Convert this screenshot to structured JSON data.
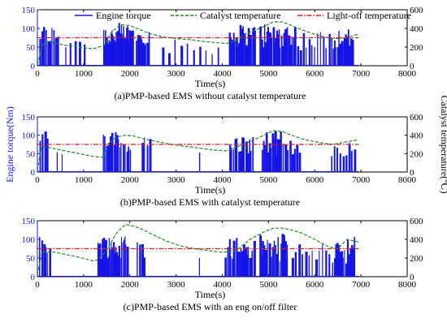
{
  "chart_data": [
    {
      "type": "line",
      "caption": "(a)PMP-based EMS without catalyst temperature",
      "xlabel": "Time(s)",
      "ylabel": "",
      "ylabel_right": "",
      "xlim": [
        0,
        8000
      ],
      "ylim": [
        0,
        150
      ],
      "ylim_right": [
        0,
        600
      ],
      "xticks": [
        "0",
        "1000",
        "2000",
        "3000",
        "4000",
        "5000",
        "6000",
        "7000",
        "8000"
      ],
      "yticks": [
        "0",
        "50",
        "100",
        "150"
      ],
      "yticks_right": [
        "0",
        "200",
        "400",
        "600"
      ],
      "grid": false,
      "legend": {
        "placement": "top",
        "entries": [
          "Engine torque",
          "Catalyst temperature",
          "Light-off temperature"
        ]
      },
      "series": [
        {
          "name": "Engine torque",
          "axis": "left",
          "style": "bars",
          "bursts": [
            {
              "start": 40,
              "end": 430,
              "count": 10,
              "min": 55,
              "max": 110
            },
            {
              "start": 600,
              "end": 1000,
              "count": 5,
              "min": 40,
              "max": 95
            },
            {
              "start": 1420,
              "end": 2060,
              "count": 32,
              "min": 50,
              "max": 115
            },
            {
              "start": 2130,
              "end": 2400,
              "count": 9,
              "min": 55,
              "max": 105
            },
            {
              "start": 2700,
              "end": 3900,
              "count": 10,
              "min": 30,
              "max": 70
            },
            {
              "start": 4140,
              "end": 4700,
              "count": 20,
              "min": 50,
              "max": 112
            },
            {
              "start": 4800,
              "end": 5550,
              "count": 30,
              "min": 45,
              "max": 118
            },
            {
              "start": 5620,
              "end": 6300,
              "count": 12,
              "min": 40,
              "max": 95
            },
            {
              "start": 6360,
              "end": 6800,
              "count": 16,
              "min": 45,
              "max": 105
            }
          ]
        },
        {
          "name": "Catalyst temperature",
          "axis": "right",
          "style": "dashed",
          "x": [
            0,
            100,
            200,
            400,
            600,
            900,
            1200,
            1450,
            1600,
            1800,
            2000,
            2200,
            2400,
            2700,
            3000,
            3300,
            3600,
            3900,
            4100,
            4300,
            4500,
            4700,
            4900,
            5100,
            5300,
            5500,
            5800,
            6100,
            6400,
            6700,
            6950
          ],
          "y": [
            10,
            210,
            260,
            240,
            220,
            200,
            180,
            220,
            360,
            440,
            430,
            390,
            350,
            310,
            290,
            280,
            260,
            245,
            240,
            270,
            340,
            380,
            420,
            470,
            470,
            430,
            370,
            320,
            290,
            300,
            340
          ]
        },
        {
          "name": "Light-off temperature",
          "axis": "right",
          "style": "dashdot",
          "x": [
            0,
            6950
          ],
          "y": [
            300,
            300
          ]
        }
      ]
    },
    {
      "type": "line",
      "caption": "(b)PMP-based EMS with catalyst temperature",
      "xlabel": "Time(s)",
      "ylabel": "Engine torque(Nm)",
      "ylabel_right": "Catalyst temperature(℃)",
      "xlim": [
        0,
        8000
      ],
      "ylim": [
        0,
        150
      ],
      "ylim_right": [
        0,
        600
      ],
      "xticks": [
        "0",
        "1000",
        "2000",
        "3000",
        "4000",
        "5000",
        "6000",
        "7000",
        "8000"
      ],
      "yticks": [
        "0",
        "50",
        "100",
        "150"
      ],
      "yticks_right": [
        "0",
        "200",
        "400",
        "600"
      ],
      "grid": false,
      "series": [
        {
          "name": "Engine torque",
          "axis": "left",
          "style": "bars",
          "bursts": [
            {
              "start": 40,
              "end": 200,
              "count": 4,
              "min": 60,
              "max": 112
            },
            {
              "start": 420,
              "end": 520,
              "count": 2,
              "min": 40,
              "max": 70
            },
            {
              "start": 1420,
              "end": 1800,
              "count": 14,
              "min": 60,
              "max": 110
            },
            {
              "start": 1850,
              "end": 2000,
              "count": 5,
              "min": 55,
              "max": 95
            },
            {
              "start": 2250,
              "end": 2420,
              "count": 4,
              "min": 50,
              "max": 100
            },
            {
              "start": 3500,
              "end": 3560,
              "count": 1,
              "min": 50,
              "max": 55
            },
            {
              "start": 4150,
              "end": 4650,
              "count": 14,
              "min": 50,
              "max": 100
            },
            {
              "start": 4850,
              "end": 5250,
              "count": 14,
              "min": 45,
              "max": 112
            },
            {
              "start": 5300,
              "end": 5650,
              "count": 8,
              "min": 40,
              "max": 90
            },
            {
              "start": 6350,
              "end": 6850,
              "count": 9,
              "min": 40,
              "max": 90
            }
          ]
        },
        {
          "name": "Catalyst temperature",
          "axis": "right",
          "style": "dashed",
          "x": [
            0,
            80,
            150,
            300,
            600,
            900,
            1200,
            1420,
            1550,
            1700,
            1900,
            2100,
            2300,
            2600,
            2900,
            3200,
            3500,
            3800,
            4100,
            4300,
            4600,
            4900,
            5100,
            5300,
            5500,
            5800,
            6100,
            6400,
            6700,
            6950
          ],
          "y": [
            20,
            250,
            280,
            260,
            230,
            200,
            170,
            160,
            310,
            380,
            400,
            390,
            360,
            330,
            300,
            280,
            260,
            240,
            230,
            270,
            330,
            400,
            450,
            440,
            400,
            350,
            320,
            300,
            330,
            350
          ]
        },
        {
          "name": "Light-off temperature",
          "axis": "right",
          "style": "dashdot",
          "x": [
            0,
            6950
          ],
          "y": [
            300,
            300
          ]
        }
      ]
    },
    {
      "type": "line",
      "caption": "(c)PMP-based EMS with an eng on/off filter",
      "xlabel": "Time(s)",
      "ylabel": "",
      "ylabel_right": "",
      "xlim": [
        0,
        8000
      ],
      "ylim": [
        0,
        150
      ],
      "ylim_right": [
        0,
        600
      ],
      "xticks": [
        "0",
        "1000",
        "2000",
        "3000",
        "4000",
        "5000",
        "6000",
        "7000",
        "8000"
      ],
      "yticks": [
        "0",
        "50",
        "100",
        "150"
      ],
      "yticks_right": [
        "0",
        "200",
        "400",
        "600"
      ],
      "grid": false,
      "series": [
        {
          "name": "Engine torque",
          "axis": "left",
          "style": "bars",
          "bursts": [
            {
              "start": 40,
              "end": 250,
              "count": 6,
              "min": 60,
              "max": 110
            },
            {
              "start": 1300,
              "end": 1950,
              "count": 30,
              "min": 45,
              "max": 115
            },
            {
              "start": 2150,
              "end": 2300,
              "count": 4,
              "min": 50,
              "max": 100
            },
            {
              "start": 3500,
              "end": 3560,
              "count": 1,
              "min": 50,
              "max": 55
            },
            {
              "start": 4050,
              "end": 4700,
              "count": 22,
              "min": 35,
              "max": 112
            },
            {
              "start": 4800,
              "end": 5400,
              "count": 22,
              "min": 40,
              "max": 115
            },
            {
              "start": 5500,
              "end": 6300,
              "count": 12,
              "min": 35,
              "max": 90
            },
            {
              "start": 6380,
              "end": 6850,
              "count": 16,
              "min": 35,
              "max": 112
            }
          ]
        },
        {
          "name": "Catalyst temperature",
          "axis": "right",
          "style": "dashed",
          "x": [
            0,
            100,
            400,
            800,
            1200,
            1300,
            1500,
            1700,
            1900,
            2100,
            2300,
            2500,
            2800,
            3100,
            3400,
            3700,
            4000,
            4300,
            4600,
            4900,
            5100,
            5300,
            5500,
            5700,
            6000,
            6300,
            6500,
            6700,
            6950
          ],
          "y": [
            20,
            270,
            260,
            220,
            170,
            180,
            280,
            460,
            560,
            540,
            500,
            450,
            380,
            330,
            300,
            280,
            260,
            280,
            400,
            480,
            520,
            520,
            500,
            470,
            400,
            320,
            300,
            400,
            370
          ]
        },
        {
          "name": "Light-off temperature",
          "axis": "right",
          "style": "dashdot",
          "x": [
            0,
            6950
          ],
          "y": [
            300,
            300
          ]
        }
      ]
    }
  ]
}
